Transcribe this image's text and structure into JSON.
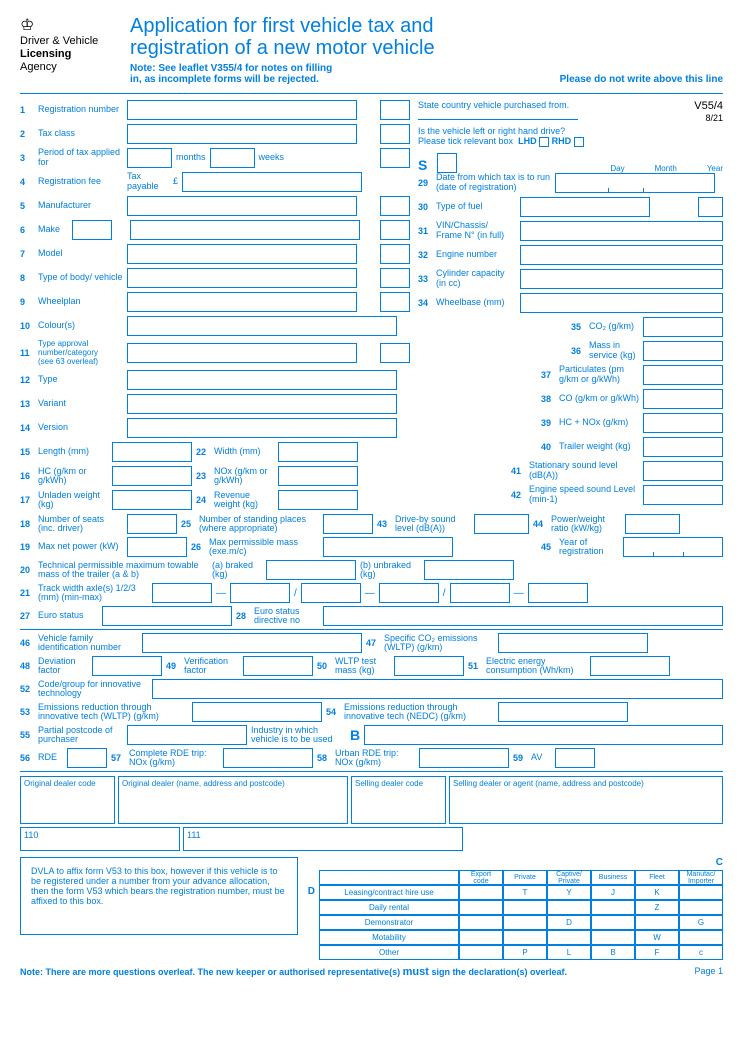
{
  "logo": {
    "line1": "Driver & Vehicle",
    "line2": "Licensing",
    "line3": "Agency"
  },
  "title1": "Application for first vehicle tax and",
  "title2": "registration of a new motor vehicle",
  "note1": "Note: See leaflet V355/4 for notes on filling",
  "note2": "in, as incomplete forms will be rejected.",
  "topline": "Please do not write above this line",
  "code": "V55/4",
  "codedate": "8/21",
  "state": "State country vehicle purchased from.",
  "drive_q": "Is the vehicle left or right hand drive?",
  "drive_tick": "Please tick relevant box",
  "lhd": "LHD",
  "rhd": "RHD",
  "S": "S",
  "day": "Day",
  "month": "Month",
  "year": "Year",
  "f1": "Registration number",
  "f2": "Tax class",
  "f3": "Period of tax applied for",
  "f3_months": "months",
  "f3_weeks": "weeks",
  "f4": "Registration fee",
  "f4_tax": "Tax payable",
  "f4_pound": "£",
  "f5": "Manufacturer",
  "f6": "Make",
  "f7": "Model",
  "f8": "Type of body/ vehicle",
  "f9": "Wheelplan",
  "f10": "Colour(s)",
  "f11": "Type approval number/category",
  "f11_see": "(see 63 overleaf)",
  "f12": "Type",
  "f13": "Variant",
  "f14": "Version",
  "f15": "Length (mm)",
  "f22": "Width (mm)",
  "f16": "HC (g/km or g/kWh)",
  "f23": "NOx (g/km or g/kWh)",
  "f17": "Unladen weight (kg)",
  "f24": "Revenue weight (kg)",
  "f18": "Number of seats (inc. driver)",
  "f25": "Number of standing places (where appropriate)",
  "f19": "Max net power (kW)",
  "f26": "Max permissible mass (exe.m/c)",
  "f20": "Technical permissible maximum towable mass of the trailer (a & b)",
  "f20a": "(a) braked (kg)",
  "f20b": "(b) unbraked (kg)",
  "f21": "Track width axle(s) 1/2/3 (mm) (min-max)",
  "f27": "Euro status",
  "f28": "Euro status directive no",
  "f29": "Date from which tax is to run (date of registration)",
  "f30": "Type of fuel",
  "f31": "VIN/Chassis/ Frame N° (in full)",
  "f32": "Engine number",
  "f33": "Cylinder capacity (in cc)",
  "f34": "Wheelbase (mm)",
  "f35": "CO₂ (g/km)",
  "f36": "Mass in service (kg)",
  "f37": "Particulates (pm g/km or g/kWh)",
  "f38": "CO (g/km or g/kWh)",
  "f39": "HC + NOx (g/km)",
  "f40": "Trailer weight (kg)",
  "f41": "Stationary sound level (dB(A))",
  "f42": "Engine speed sound Level (min-1)",
  "f43": "Drive-by sound level (dB(A))",
  "f44": "Power/weight ratio (kW/kg)",
  "f45": "Year of registration",
  "f46": "Vehicle family identification number",
  "f47": "Specific CO₂ emissions (WLTP) (g/km)",
  "f48": "Deviation factor",
  "f49": "Verification factor",
  "f50": "WLTP test mass (kg)",
  "f51": "Electric energy consumption (Wh/km)",
  "f52": "Code/group for innovative technology",
  "f53": "Emissions reduction through innovative tech (WLTP) (g/km)",
  "f54": "Emissions reduction through innovative tech (NEDC) (g/km)",
  "f55": "Partial postcode of purchaser",
  "f55b": "Industry in which vehicle is to be used",
  "B": "B",
  "f56": "RDE",
  "f57": "Complete RDE trip: NOx (g/km)",
  "f58": "Urban RDE trip: NOx (g/km)",
  "f59": "AV",
  "dealer1": "Original dealer code",
  "dealer2": "Original dealer (name, address and postcode)",
  "dealer3": "Selling dealer code",
  "dealer4": "Selling dealer or agent (name, address and postcode)",
  "ref110": "110",
  "ref111": "111",
  "dvla": "DVLA to affix form V53 to this box, however if this vehicle is to be registered under a number from your advance allocation, then the form V53 which bears the registration number, must be affixed to this box.",
  "C": "C",
  "D": "D",
  "gridh": [
    "Export code",
    "Private",
    "Captive/ Private",
    "Business",
    "Fleet",
    "Manufac/ Importer"
  ],
  "gridrows": [
    {
      "l": "Leasing/contract hire use",
      "c": [
        "",
        "T",
        "Y",
        "J",
        "K",
        ""
      ]
    },
    {
      "l": "Daily rental",
      "c": [
        "",
        "",
        "",
        "",
        "Z",
        ""
      ]
    },
    {
      "l": "Demonstrator",
      "c": [
        "",
        "",
        "D",
        "",
        "",
        "G"
      ]
    },
    {
      "l": "Motability",
      "c": [
        "",
        "",
        "",
        "",
        "W",
        ""
      ]
    },
    {
      "l": "Other",
      "c": [
        "",
        "P",
        "L",
        "B",
        "F",
        "c"
      ]
    }
  ],
  "bottom": "Note: There are more questions overleaf. The new keeper or authorised representative(s)",
  "must": "must",
  "bottom2": "sign the declaration(s) overleaf.",
  "page": "Page 1"
}
